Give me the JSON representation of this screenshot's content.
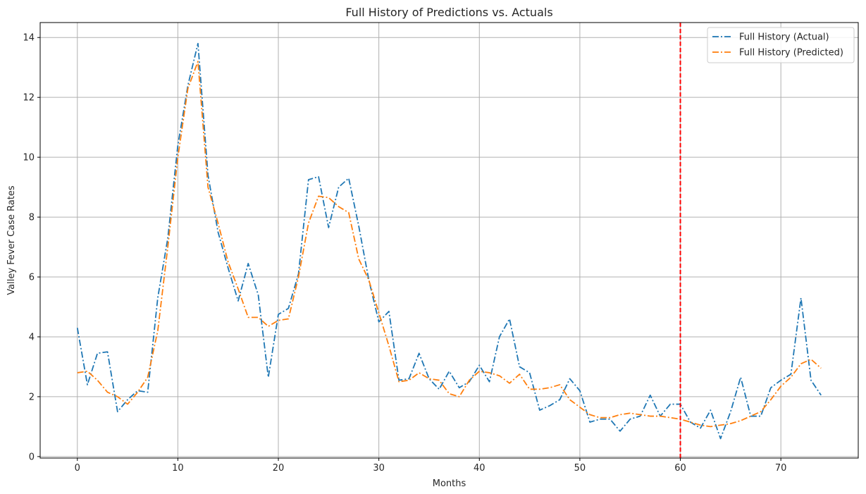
{
  "chart_data": {
    "type": "line",
    "title": "Full History of Predictions vs. Actuals",
    "xlabel": "Months",
    "ylabel": "Valley Fever Case Rates",
    "xlim": [
      -3.7,
      77.7
    ],
    "ylim": [
      -0.05,
      14.5
    ],
    "xticks": [
      0,
      10,
      20,
      30,
      40,
      50,
      60,
      70
    ],
    "yticks": [
      0,
      2,
      4,
      6,
      8,
      10,
      12,
      14
    ],
    "grid": true,
    "legend_position": "top-right",
    "vertical_marker": {
      "x": 60,
      "color": "#ff0000",
      "style": "dashed"
    },
    "series": [
      {
        "name": "Full History (Actual)",
        "color": "#1f77b4",
        "style": "dashdot",
        "x": [
          0,
          1,
          2,
          3,
          4,
          5,
          6,
          7,
          8,
          9,
          10,
          11,
          12,
          13,
          14,
          15,
          16,
          17,
          18,
          19,
          20,
          21,
          22,
          23,
          24,
          25,
          26,
          27,
          28,
          29,
          30,
          31,
          32,
          33,
          34,
          35,
          36,
          37,
          38,
          39,
          40,
          41,
          42,
          43,
          44,
          45,
          46,
          47,
          48,
          49,
          50,
          51,
          52,
          53,
          54,
          55,
          56,
          57,
          58,
          59,
          60,
          61,
          62,
          63,
          64,
          65,
          66,
          67,
          68,
          69,
          70,
          71,
          72,
          73,
          74
        ],
        "values": [
          4.3,
          2.4,
          3.45,
          3.5,
          1.5,
          1.9,
          2.2,
          2.15,
          5.3,
          7.3,
          10.4,
          12.4,
          13.8,
          9.4,
          7.5,
          6.3,
          5.2,
          6.45,
          5.4,
          2.65,
          4.75,
          4.95,
          6.1,
          9.25,
          9.35,
          7.65,
          9.0,
          9.3,
          7.7,
          5.9,
          4.5,
          4.85,
          2.55,
          2.6,
          3.45,
          2.6,
          2.25,
          2.85,
          2.3,
          2.5,
          3.05,
          2.5,
          4.0,
          4.6,
          3.0,
          2.8,
          1.55,
          1.7,
          1.9,
          2.6,
          2.2,
          1.15,
          1.25,
          1.25,
          0.85,
          1.25,
          1.35,
          2.05,
          1.35,
          1.75,
          1.75,
          1.15,
          0.95,
          1.55,
          0.6,
          1.5,
          2.65,
          1.35,
          1.35,
          2.3,
          2.55,
          2.75,
          5.3,
          2.55,
          2.05
        ]
      },
      {
        "name": "Full History (Predicted)",
        "color": "#ff7f0e",
        "style": "dashdot",
        "x": [
          0,
          1,
          2,
          3,
          4,
          5,
          6,
          7,
          8,
          9,
          10,
          11,
          12,
          13,
          14,
          15,
          16,
          17,
          18,
          19,
          20,
          21,
          22,
          23,
          24,
          25,
          26,
          27,
          28,
          29,
          30,
          31,
          32,
          33,
          34,
          35,
          36,
          37,
          38,
          39,
          40,
          41,
          42,
          43,
          44,
          45,
          46,
          47,
          48,
          49,
          50,
          51,
          52,
          53,
          54,
          55,
          56,
          57,
          58,
          59,
          60,
          61,
          62,
          63,
          64,
          65,
          66,
          67,
          68,
          69,
          70,
          71,
          72,
          73,
          74
        ],
        "values": [
          2.8,
          2.85,
          2.55,
          2.15,
          2.0,
          1.75,
          2.15,
          2.65,
          4.2,
          7.0,
          10.0,
          12.3,
          13.2,
          9.0,
          7.8,
          6.5,
          5.6,
          4.65,
          4.65,
          4.35,
          4.55,
          4.6,
          6.0,
          7.8,
          8.7,
          8.65,
          8.35,
          8.15,
          6.6,
          5.9,
          4.8,
          3.7,
          2.5,
          2.55,
          2.8,
          2.6,
          2.55,
          2.1,
          2.0,
          2.55,
          2.85,
          2.8,
          2.7,
          2.45,
          2.75,
          2.25,
          2.25,
          2.3,
          2.4,
          1.9,
          1.65,
          1.4,
          1.3,
          1.3,
          1.4,
          1.45,
          1.4,
          1.35,
          1.35,
          1.3,
          1.25,
          1.15,
          1.05,
          1.0,
          1.05,
          1.1,
          1.2,
          1.35,
          1.5,
          1.9,
          2.35,
          2.65,
          3.1,
          3.25,
          2.95
        ]
      }
    ]
  }
}
